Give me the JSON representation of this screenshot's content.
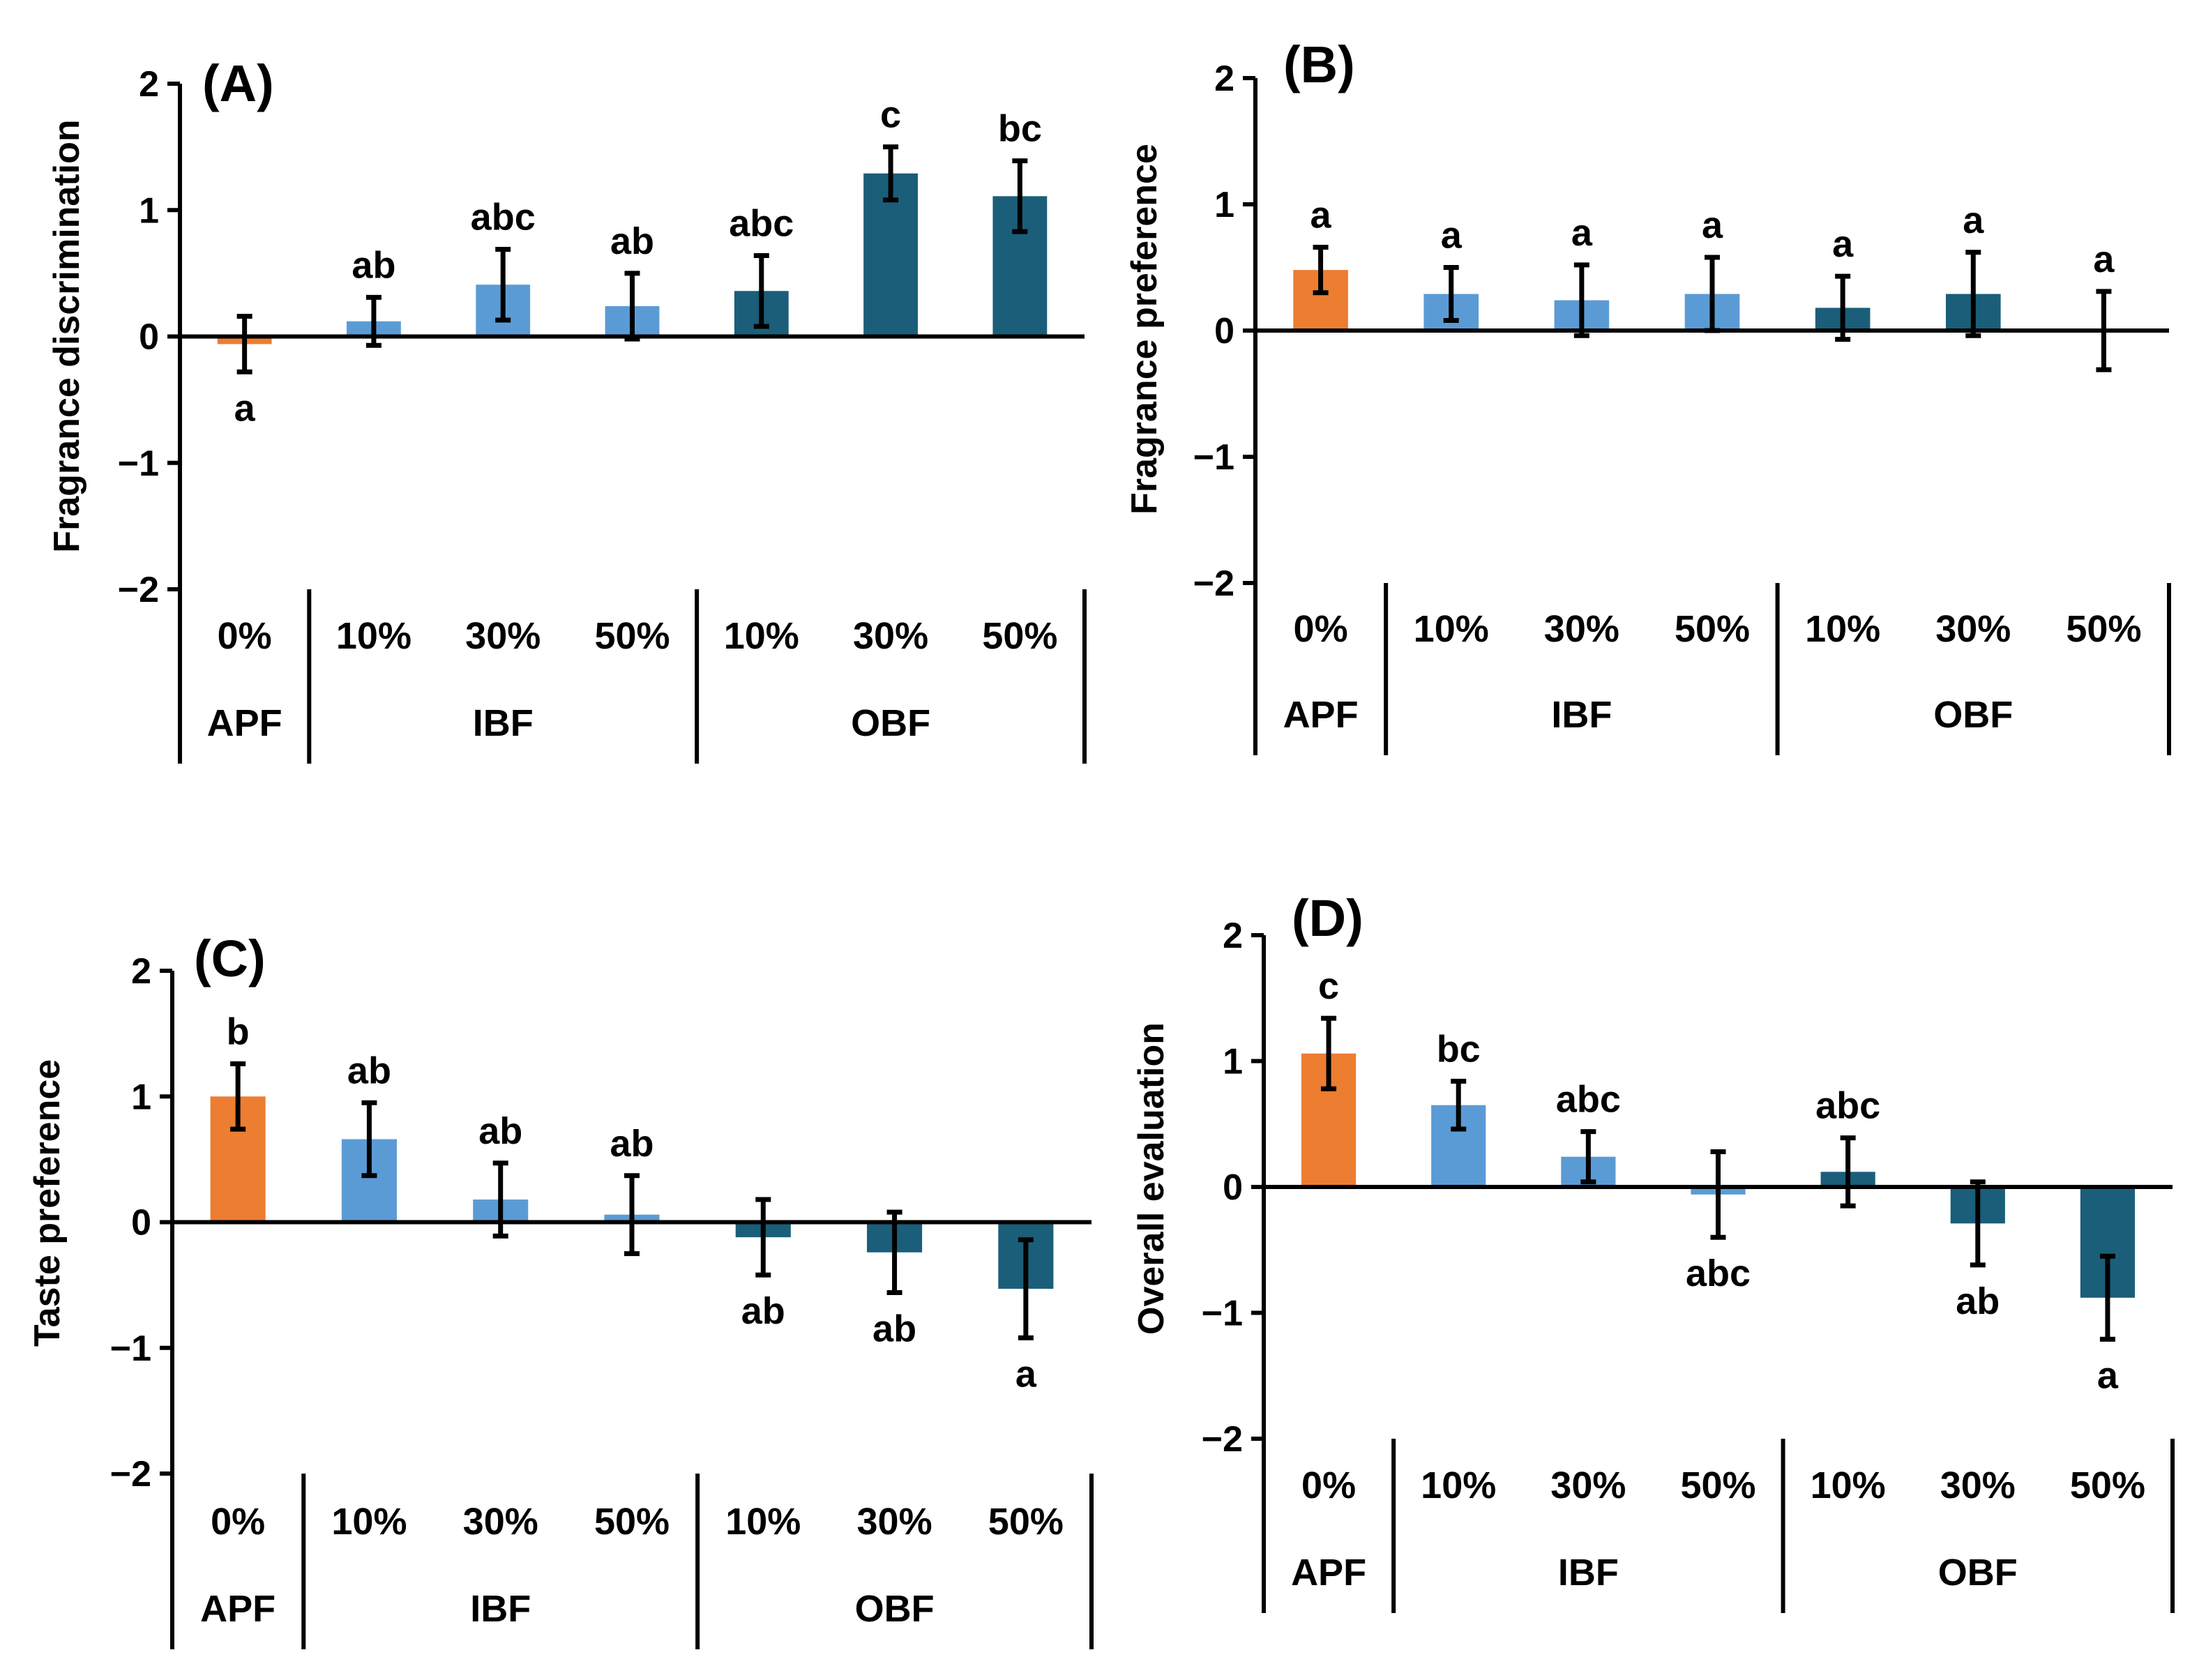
{
  "colors": {
    "APF": "#ED7D31",
    "IBF": "#5B9BD5",
    "OBF": "#1B5E7A",
    "axis": "#000000"
  },
  "chart_data": [
    {
      "type": "bar",
      "panel_label": "(A)",
      "ylabel": "Fragrance discrimination",
      "ylim": [
        -2,
        2
      ],
      "yticks": [
        "−2",
        "−1",
        "0",
        "1",
        "2"
      ],
      "categories": [
        "0%",
        "10%",
        "30%",
        "50%",
        "10%",
        "30%",
        "50%"
      ],
      "groups": [
        {
          "name": "APF",
          "start": 0,
          "count": 1
        },
        {
          "name": "IBF",
          "start": 1,
          "count": 3
        },
        {
          "name": "OBF",
          "start": 4,
          "count": 3
        }
      ],
      "values": [
        -0.06,
        0.12,
        0.41,
        0.24,
        0.36,
        1.29,
        1.11
      ],
      "errors": [
        0.22,
        0.19,
        0.28,
        0.26,
        0.28,
        0.21,
        0.28
      ],
      "letters": [
        "a",
        "ab",
        "abc",
        "ab",
        "abc",
        "c",
        "bc"
      ],
      "letter_below": [
        true,
        false,
        false,
        false,
        false,
        false,
        false
      ]
    },
    {
      "type": "bar",
      "panel_label": "(B)",
      "ylabel": "Fragrance preference",
      "ylim": [
        -2,
        2
      ],
      "yticks": [
        "−2",
        "−1",
        "0",
        "1",
        "2"
      ],
      "categories": [
        "0%",
        "10%",
        "30%",
        "50%",
        "10%",
        "30%",
        "50%"
      ],
      "groups": [
        {
          "name": "APF",
          "start": 0,
          "count": 1
        },
        {
          "name": "IBF",
          "start": 1,
          "count": 3
        },
        {
          "name": "OBF",
          "start": 4,
          "count": 3
        }
      ],
      "values": [
        0.48,
        0.29,
        0.24,
        0.29,
        0.18,
        0.29,
        0.0
      ],
      "errors": [
        0.18,
        0.21,
        0.28,
        0.29,
        0.25,
        0.33,
        0.31
      ],
      "letters": [
        "a",
        "a",
        "a",
        "a",
        "a",
        "a",
        "a"
      ],
      "letter_below": [
        false,
        false,
        false,
        false,
        false,
        false,
        false
      ]
    },
    {
      "type": "bar",
      "panel_label": "(C)",
      "ylabel": "Taste preference",
      "ylim": [
        -2,
        2
      ],
      "yticks": [
        "−2",
        "−1",
        "0",
        "1",
        "2"
      ],
      "categories": [
        "0%",
        "10%",
        "30%",
        "50%",
        "10%",
        "30%",
        "50%"
      ],
      "groups": [
        {
          "name": "APF",
          "start": 0,
          "count": 1
        },
        {
          "name": "IBF",
          "start": 1,
          "count": 3
        },
        {
          "name": "OBF",
          "start": 4,
          "count": 3
        }
      ],
      "values": [
        1.0,
        0.66,
        0.18,
        0.06,
        -0.12,
        -0.24,
        -0.53
      ],
      "errors": [
        0.26,
        0.29,
        0.29,
        0.31,
        0.3,
        0.32,
        0.39
      ],
      "letters": [
        "b",
        "ab",
        "ab",
        "ab",
        "ab",
        "ab",
        "a"
      ],
      "letter_below": [
        false,
        false,
        false,
        false,
        true,
        true,
        true
      ]
    },
    {
      "type": "bar",
      "panel_label": "(D)",
      "ylabel": "Overall evaluation",
      "ylim": [
        -2,
        2
      ],
      "yticks": [
        "−2",
        "−1",
        "0",
        "1",
        "2"
      ],
      "categories": [
        "0%",
        "10%",
        "30%",
        "50%",
        "10%",
        "30%",
        "50%"
      ],
      "groups": [
        {
          "name": "APF",
          "start": 0,
          "count": 1
        },
        {
          "name": "IBF",
          "start": 1,
          "count": 3
        },
        {
          "name": "OBF",
          "start": 4,
          "count": 3
        }
      ],
      "values": [
        1.06,
        0.65,
        0.24,
        -0.06,
        0.12,
        -0.29,
        -0.88
      ],
      "errors": [
        0.28,
        0.19,
        0.2,
        0.34,
        0.27,
        0.33,
        0.33
      ],
      "letters": [
        "c",
        "bc",
        "abc",
        "abc",
        "abc",
        "ab",
        "a"
      ],
      "letter_below": [
        false,
        false,
        false,
        true,
        false,
        true,
        true
      ]
    }
  ]
}
